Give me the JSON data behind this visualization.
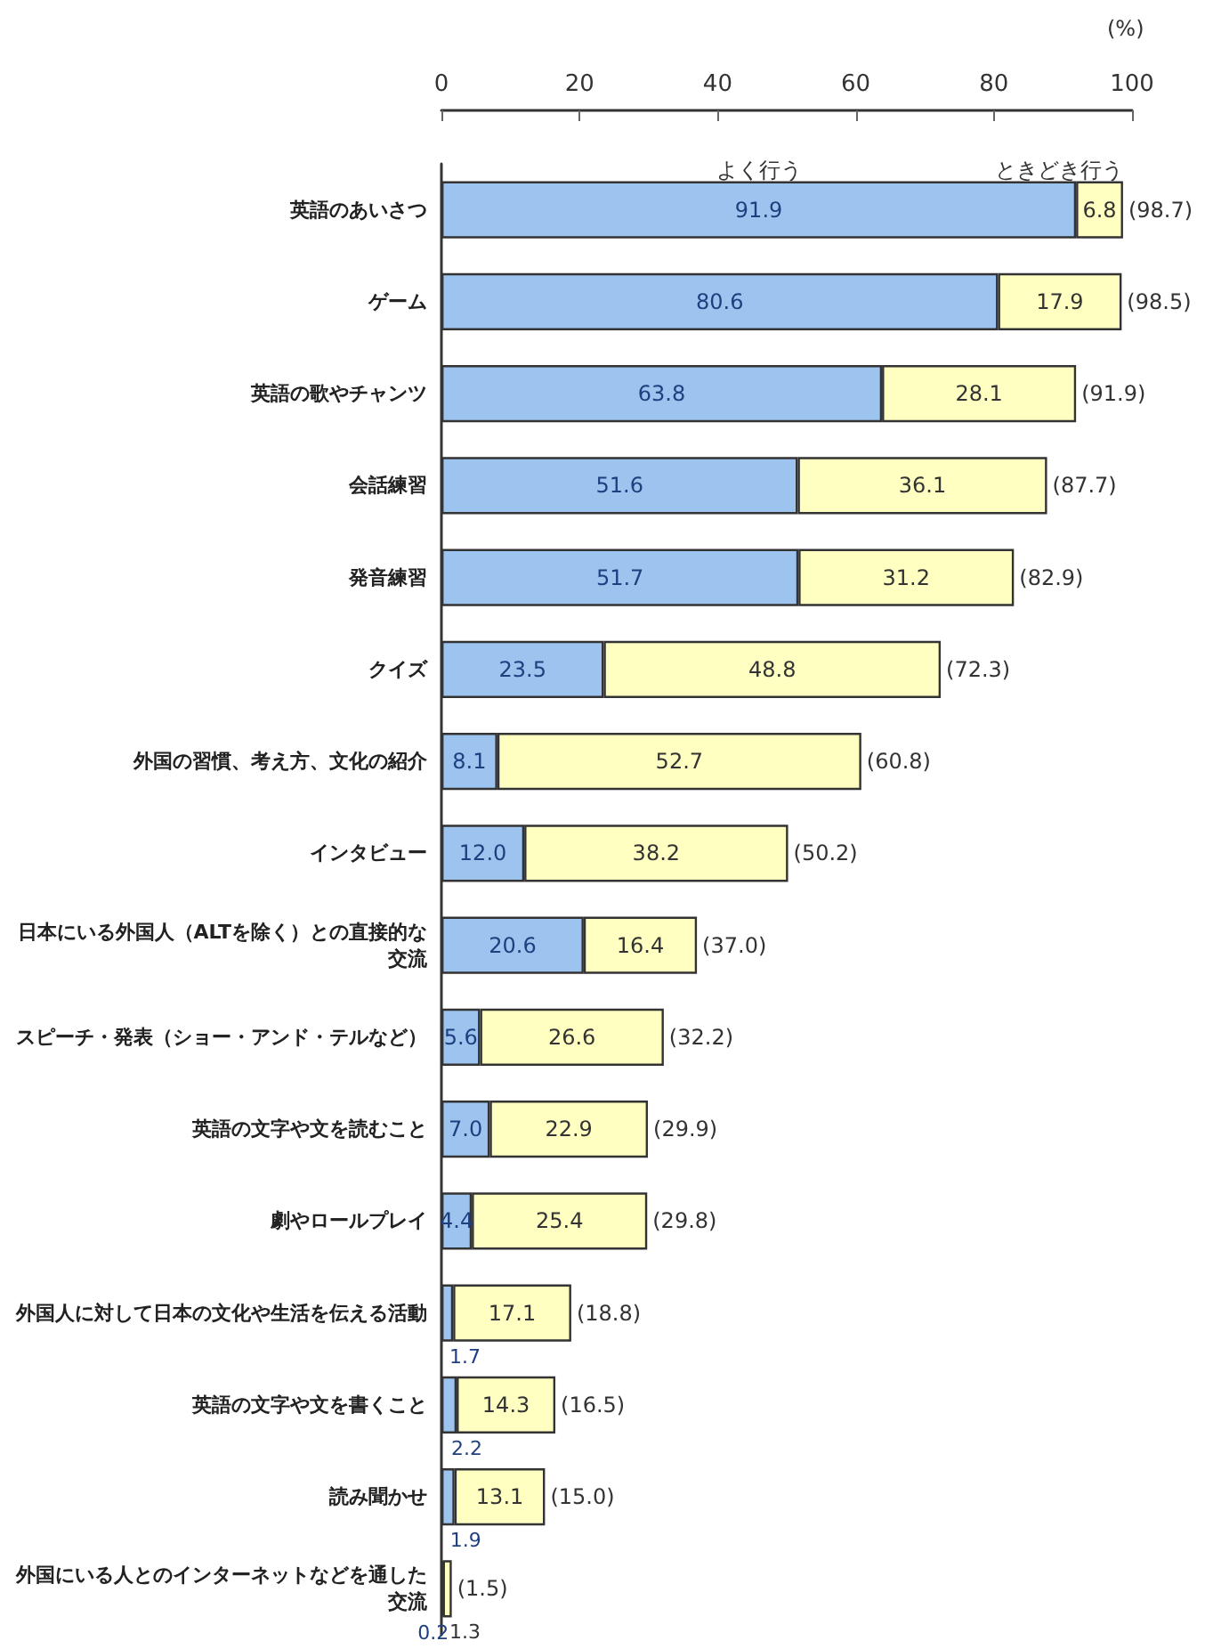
{
  "chart_data": {
    "type": "bar",
    "orientation": "horizontal",
    "stacked": true,
    "xlabel": "(%)",
    "categories": [
      "英語のあいさつ",
      "ゲーム",
      "英語の歌やチャンツ",
      "会話練習",
      "発音練習",
      "クイズ",
      "外国の習慣、考え方、文化の紹介",
      "インタビュー",
      "日本にいる外国人（ALTを除く）との直接的な交流",
      "スピーチ・発表（ショー・アンド・テルなど）",
      "英語の文字や文を読むこと",
      "劇やロールプレイ",
      "外国人に対して日本の文化や生活を伝える活動",
      "英語の文字や文を書くこと",
      "読み聞かせ",
      "外国にいる人とのインターネットなどを通した交流"
    ],
    "series": [
      {
        "name": "よく行う",
        "color": "#9dc3ef",
        "values": [
          91.9,
          80.6,
          63.8,
          51.6,
          51.7,
          23.5,
          8.1,
          12.0,
          20.6,
          5.6,
          7.0,
          4.4,
          1.7,
          2.2,
          1.9,
          0.2
        ],
        "value_labels": [
          "91.9",
          "80.6",
          "63.8",
          "51.6",
          "51.7",
          "23.5",
          "8.1",
          "12.0",
          "20.6",
          "5.6",
          "7.0",
          "4.4",
          "1.7",
          "2.2",
          "1.9",
          "0.2"
        ]
      },
      {
        "name": "ときどき行う",
        "color": "#ffffc2",
        "values": [
          6.8,
          17.9,
          28.1,
          36.1,
          31.2,
          48.8,
          52.7,
          38.2,
          16.4,
          26.6,
          22.9,
          25.4,
          17.1,
          14.3,
          13.1,
          1.3
        ],
        "value_labels": [
          "6.8",
          "17.9",
          "28.1",
          "36.1",
          "31.2",
          "48.8",
          "52.7",
          "38.2",
          "16.4",
          "26.6",
          "22.9",
          "25.4",
          "17.1",
          "14.3",
          "13.1",
          "1.3"
        ]
      }
    ],
    "totals": [
      "(98.7)",
      "(98.5)",
      "(91.9)",
      "(87.7)",
      "(82.9)",
      "(72.3)",
      "(60.8)",
      "(50.2)",
      "(37.0)",
      "(32.2)",
      "(29.9)",
      "(29.8)",
      "(18.8)",
      "(16.5)",
      "(15.0)",
      "(1.5)"
    ],
    "xlim": [
      0,
      100
    ],
    "xticks": [
      0,
      20,
      40,
      60,
      80,
      100
    ],
    "grid": false
  }
}
